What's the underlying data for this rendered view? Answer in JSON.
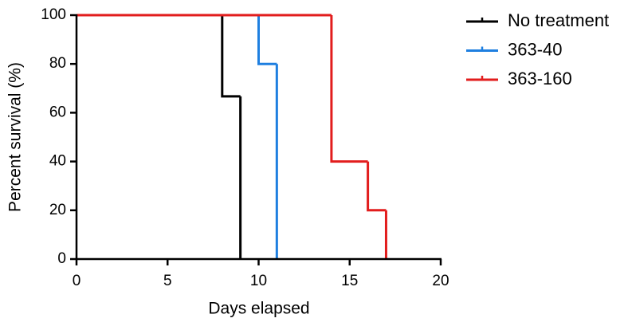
{
  "chart_data": {
    "type": "step",
    "x_label": "Days elapsed",
    "y_label": "Percent survival (%)",
    "xlim": [
      0,
      20
    ],
    "xticks": [
      0,
      5,
      10,
      15,
      20
    ],
    "ylim": [
      0,
      100
    ],
    "yticks": [
      0,
      20,
      40,
      60,
      80,
      100
    ],
    "legend": "right",
    "series": [
      {
        "name": "No treatment",
        "color": "#000000",
        "x": [
          0,
          8,
          9
        ],
        "values": [
          100,
          66.7,
          0
        ]
      },
      {
        "name": "363-40",
        "color": "#1e7fe0",
        "x": [
          0,
          10,
          11
        ],
        "values": [
          100,
          80,
          0
        ]
      },
      {
        "name": "363-160",
        "color": "#e21d1d",
        "x": [
          0,
          14,
          16,
          17
        ],
        "values": [
          100,
          40,
          20,
          0
        ]
      }
    ]
  }
}
